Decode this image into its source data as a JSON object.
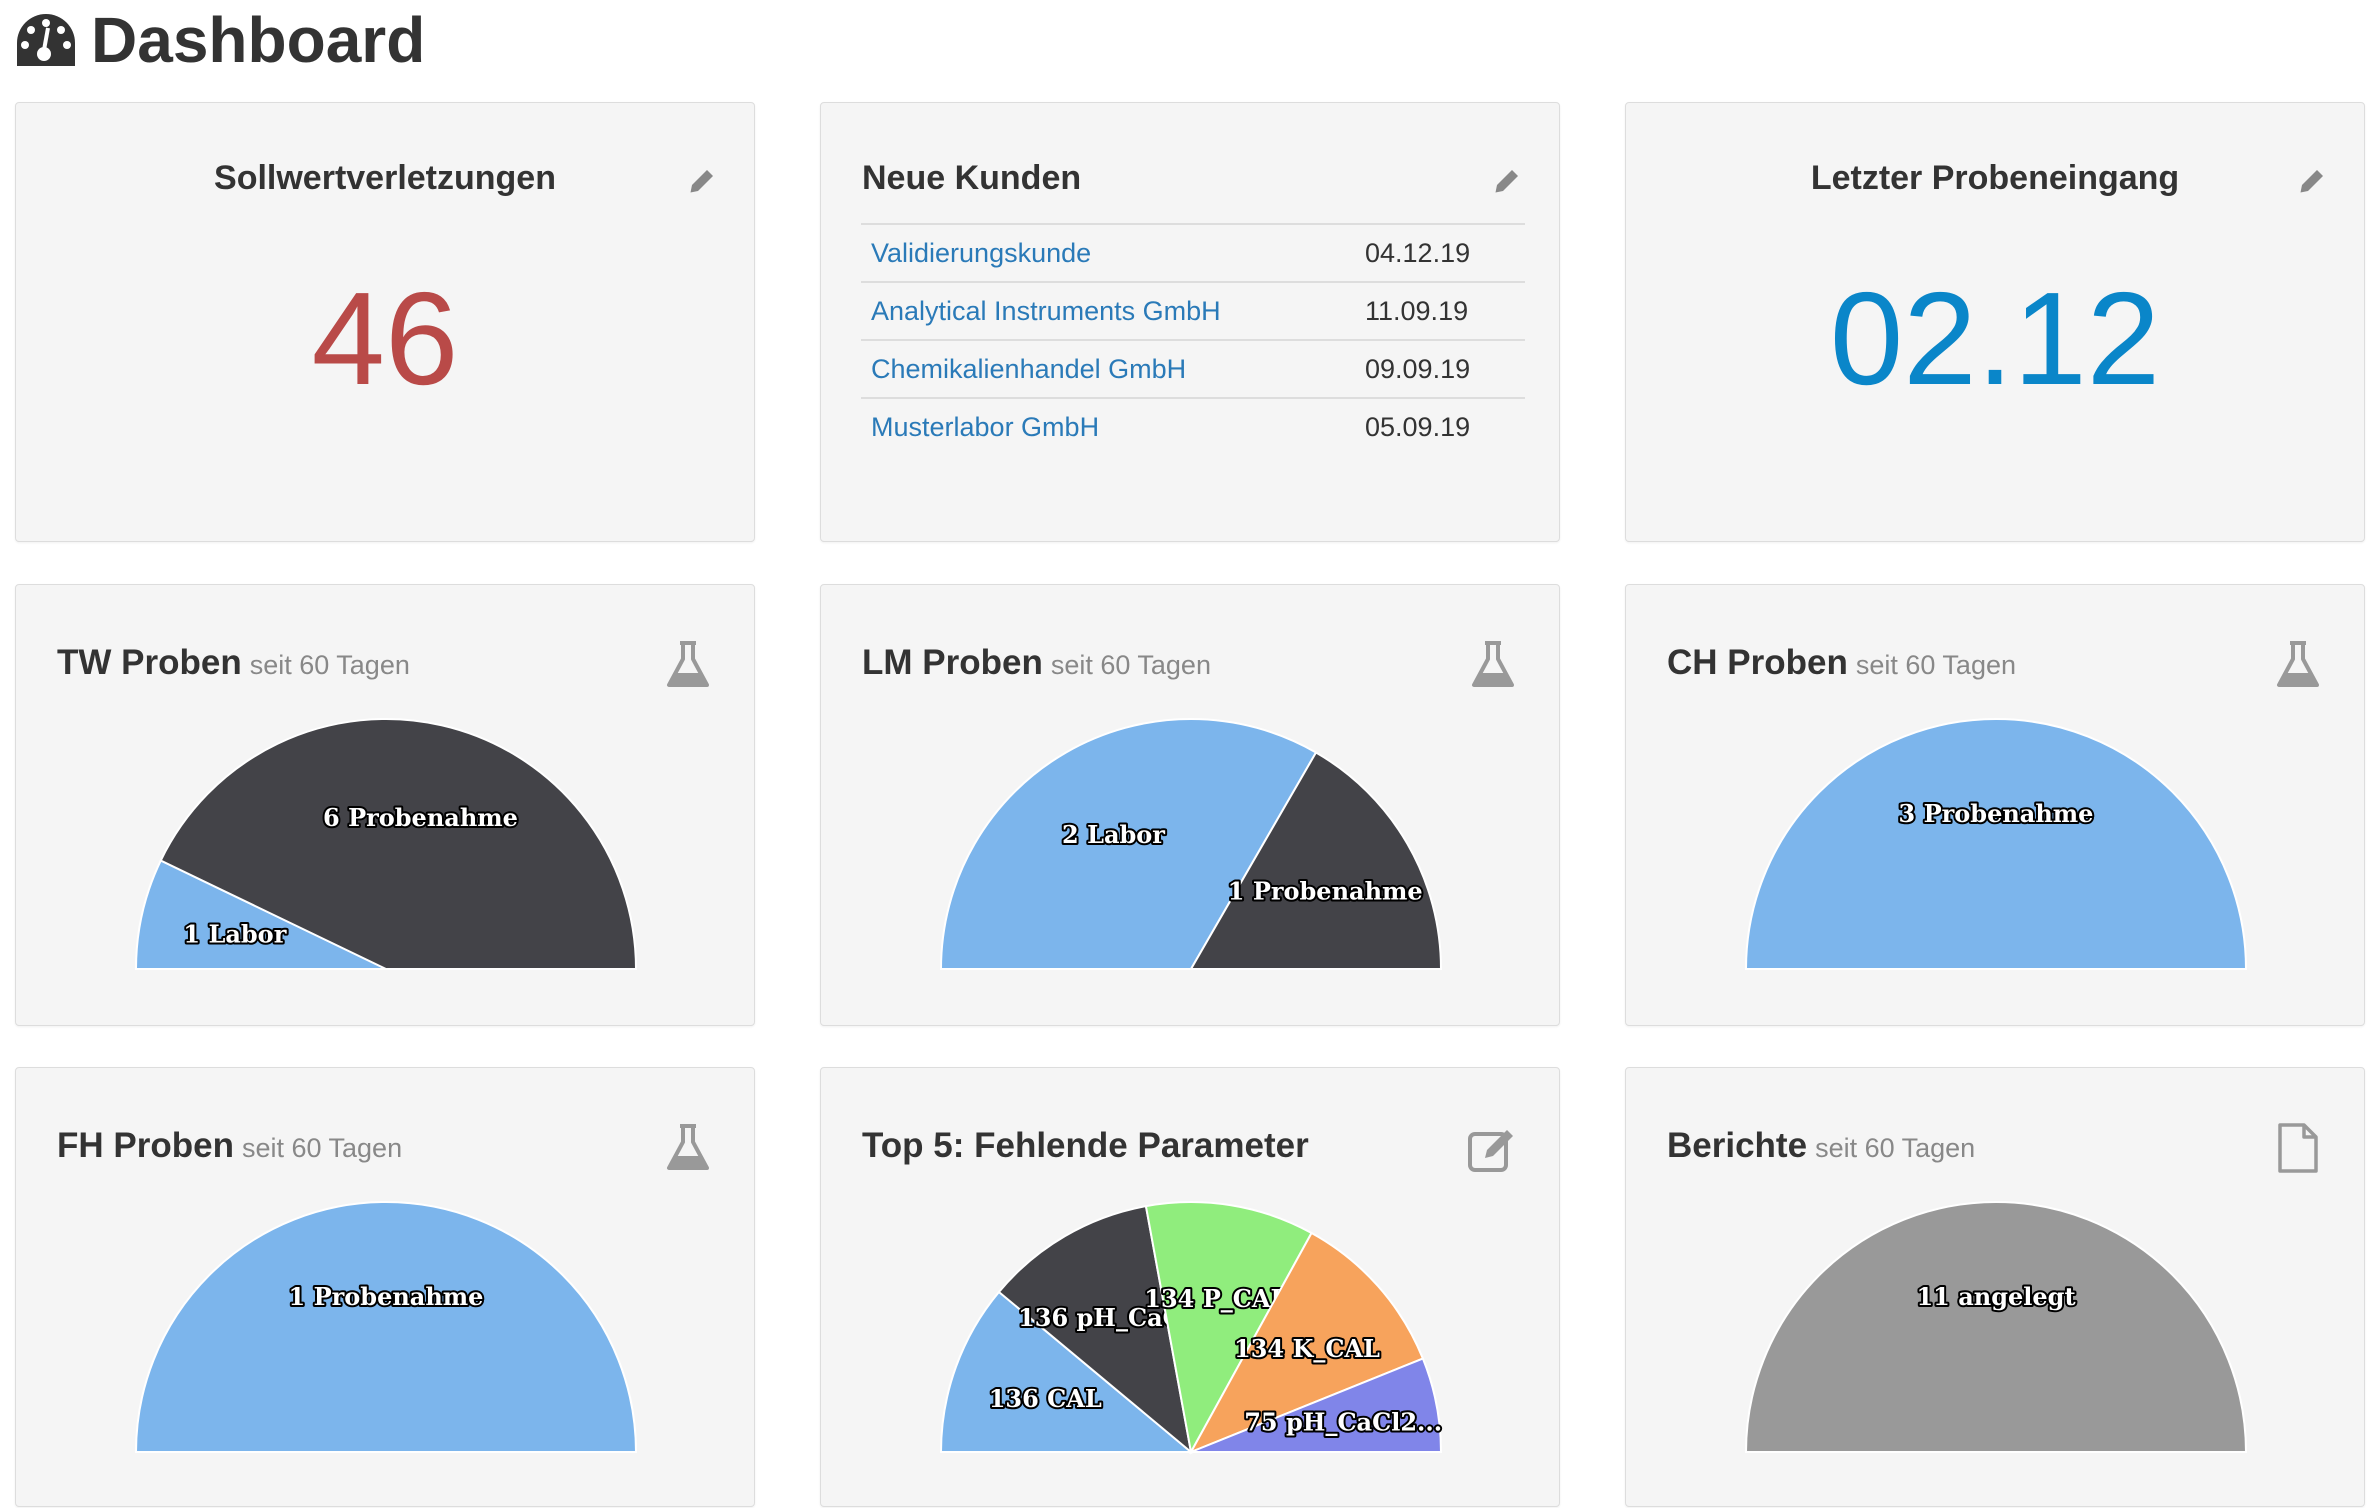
{
  "header": {
    "title": "Dashboard",
    "icon": "dashboard-icon"
  },
  "sollwert": {
    "title": "Sollwertverletzungen",
    "value": "46",
    "value_color": "#b94a48",
    "icon": "pencil-icon"
  },
  "kunden": {
    "title": "Neue Kunden",
    "icon": "pencil-icon",
    "rows": [
      {
        "name": "Validierungskunde",
        "date": "04.12.19"
      },
      {
        "name": "Analytical Instruments GmbH",
        "date": "11.09.19"
      },
      {
        "name": "Chemikalienhandel GmbH",
        "date": "09.09.19"
      },
      {
        "name": "Musterlabor GmbH",
        "date": "05.09.19"
      }
    ]
  },
  "probeneingang": {
    "title": "Letzter Probeneingang",
    "value": "02.12",
    "value_color": "#0a86c9",
    "icon": "pencil-icon"
  },
  "colors": {
    "blue": "#7cb5ec",
    "dark": "#434348",
    "green": "#90ed7d",
    "orange": "#f7a35c",
    "purple": "#8085e9",
    "grey": "#999999",
    "link": "#2a7ab8"
  },
  "chart_data": [
    {
      "id": "tw",
      "type": "pie",
      "subtype": "semi-donut",
      "title": "TW Proben",
      "subtitle": "seit 60 Tagen",
      "icon": "flask-icon",
      "slices": [
        {
          "label": "1 Labor",
          "value": 1,
          "color": "#7cb5ec"
        },
        {
          "label": "6 Probenahme",
          "value": 6,
          "color": "#434348"
        }
      ]
    },
    {
      "id": "lm",
      "type": "pie",
      "subtype": "semi-donut",
      "title": "LM Proben",
      "subtitle": "seit 60 Tagen",
      "icon": "flask-icon",
      "slices": [
        {
          "label": "2 Labor",
          "value": 2,
          "color": "#7cb5ec"
        },
        {
          "label": "1 Probenahme",
          "value": 1,
          "color": "#434348"
        }
      ]
    },
    {
      "id": "ch",
      "type": "pie",
      "subtype": "semi-donut",
      "title": "CH Proben",
      "subtitle": "seit 60 Tagen",
      "icon": "flask-icon",
      "slices": [
        {
          "label": "3 Probenahme",
          "value": 3,
          "color": "#7cb5ec"
        }
      ]
    },
    {
      "id": "fh",
      "type": "pie",
      "subtype": "semi-donut",
      "title": "FH Proben",
      "subtitle": "seit 60 Tagen",
      "icon": "flask-icon",
      "slices": [
        {
          "label": "1 Probenahme",
          "value": 1,
          "color": "#7cb5ec"
        }
      ]
    },
    {
      "id": "top5",
      "type": "pie",
      "subtype": "semi-donut",
      "title": "Top 5: Fehlende Parameter",
      "subtitle": "",
      "icon": "edit-icon",
      "slices": [
        {
          "label": "136 CAL",
          "value": 136,
          "color": "#7cb5ec"
        },
        {
          "label": "136 pH_CaCl2",
          "value": 136,
          "color": "#434348"
        },
        {
          "label": "134 P_CAL",
          "value": 134,
          "color": "#90ed7d"
        },
        {
          "label": "134 K_CAL",
          "value": 134,
          "color": "#f7a35c"
        },
        {
          "label": "75 pH_CaCl2...",
          "value": 75,
          "color": "#8085e9"
        }
      ]
    },
    {
      "id": "berichte",
      "type": "pie",
      "subtype": "semi-donut",
      "title": "Berichte",
      "subtitle": "seit 60 Tagen",
      "icon": "file-icon",
      "slices": [
        {
          "label": "11 angelegt",
          "value": 11,
          "color": "#999999"
        }
      ]
    }
  ]
}
